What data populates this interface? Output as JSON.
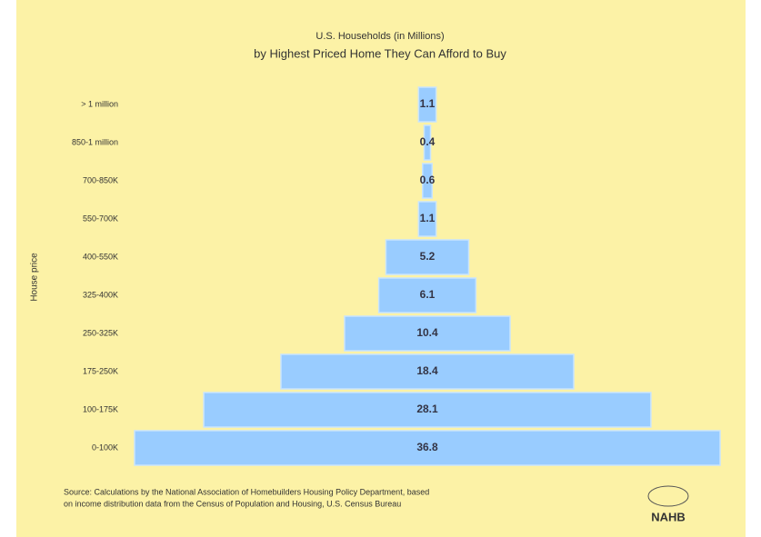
{
  "chart_data": {
    "type": "bar",
    "orientation": "horizontal",
    "title": "U.S. Households (in Millions)",
    "subtitle": "by Highest Priced Home They Can Afford to Buy",
    "y_label": "House price",
    "categories": [
      "> 1 million",
      "850-1 million",
      "700-850K",
      "550-700K",
      "400-550K",
      "325-400K",
      "250-325K",
      "175-250K",
      "100-175K",
      "0-100K"
    ],
    "values": [
      1.1,
      0.4,
      0.6,
      1.1,
      5.2,
      6.1,
      10.4,
      18.4,
      28.1,
      36.8
    ],
    "color": "#99ccff",
    "source": [
      "Source: Calculations by the National Association of Homebuilders Housing Policy Department, based",
      "on income distribution data from the Census of Population and Housing, U.S. Census Bureau"
    ],
    "logo": "NAHB"
  }
}
